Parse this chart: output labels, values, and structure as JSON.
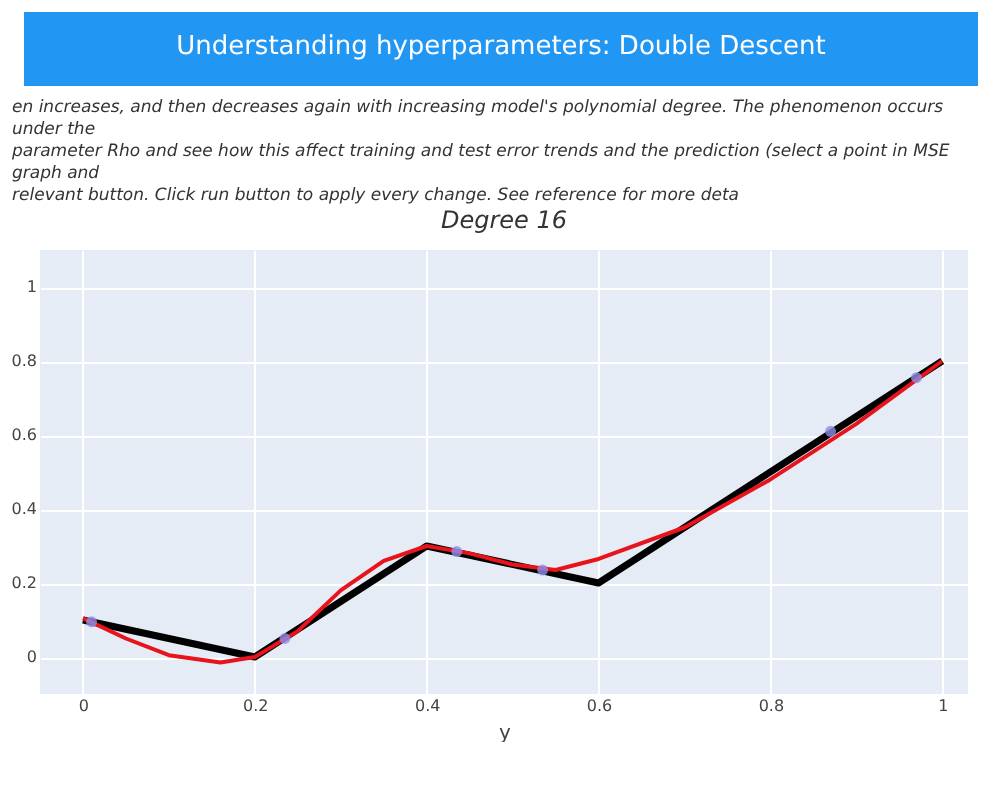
{
  "chart_data": {
    "type": "line",
    "title": "Degree 16",
    "xlabel": "y",
    "annotations": [
      "Understanding hyperparameters: Double Descent",
      "en increases, and then decreases again with increasing model's polynomial degree. The phenomenon occurs under the",
      "parameter Rho and see how this affect training and test error trends and the prediction (select a point in MSE graph and",
      "relevant button. Click run button to apply every change. See reference for more deta"
    ],
    "series": [
      {
        "color": "#000000",
        "x": [
          0,
          0.2,
          0.4,
          0.6,
          1
        ],
        "values": [
          0.1,
          0,
          0.3,
          0.2,
          0.8
        ]
      },
      {
        "color": "#e8141c",
        "x": [
          0,
          0.05,
          0.1,
          0.16,
          0.2,
          0.25,
          0.3,
          0.35,
          0.4,
          0.45,
          0.5,
          0.55,
          0.6,
          0.7,
          0.8,
          0.9,
          1
        ],
        "values": [
          0.105,
          0.05,
          0.005,
          -0.015,
          0,
          0.07,
          0.18,
          0.26,
          0.3,
          0.28,
          0.25,
          0.235,
          0.265,
          0.35,
          0.48,
          0.63,
          0.8
        ]
      },
      {
        "type": "scatter",
        "color": "#8f8fe8",
        "marker": "circle",
        "x": [
          0.01,
          0.235,
          0.435,
          0.535,
          0.87,
          0.97
        ],
        "values": [
          0.095,
          0.05,
          0.285,
          0.235,
          0.61,
          0.755
        ]
      }
    ],
    "xlim": [
      -0.05,
      1.03
    ],
    "ylim": [
      -0.1,
      1.1
    ],
    "xticks": [
      0,
      0.2,
      0.4,
      0.6,
      0.8,
      1
    ],
    "yticks": [
      0,
      0.2,
      0.4,
      0.6,
      0.8,
      1
    ],
    "grid": true
  }
}
